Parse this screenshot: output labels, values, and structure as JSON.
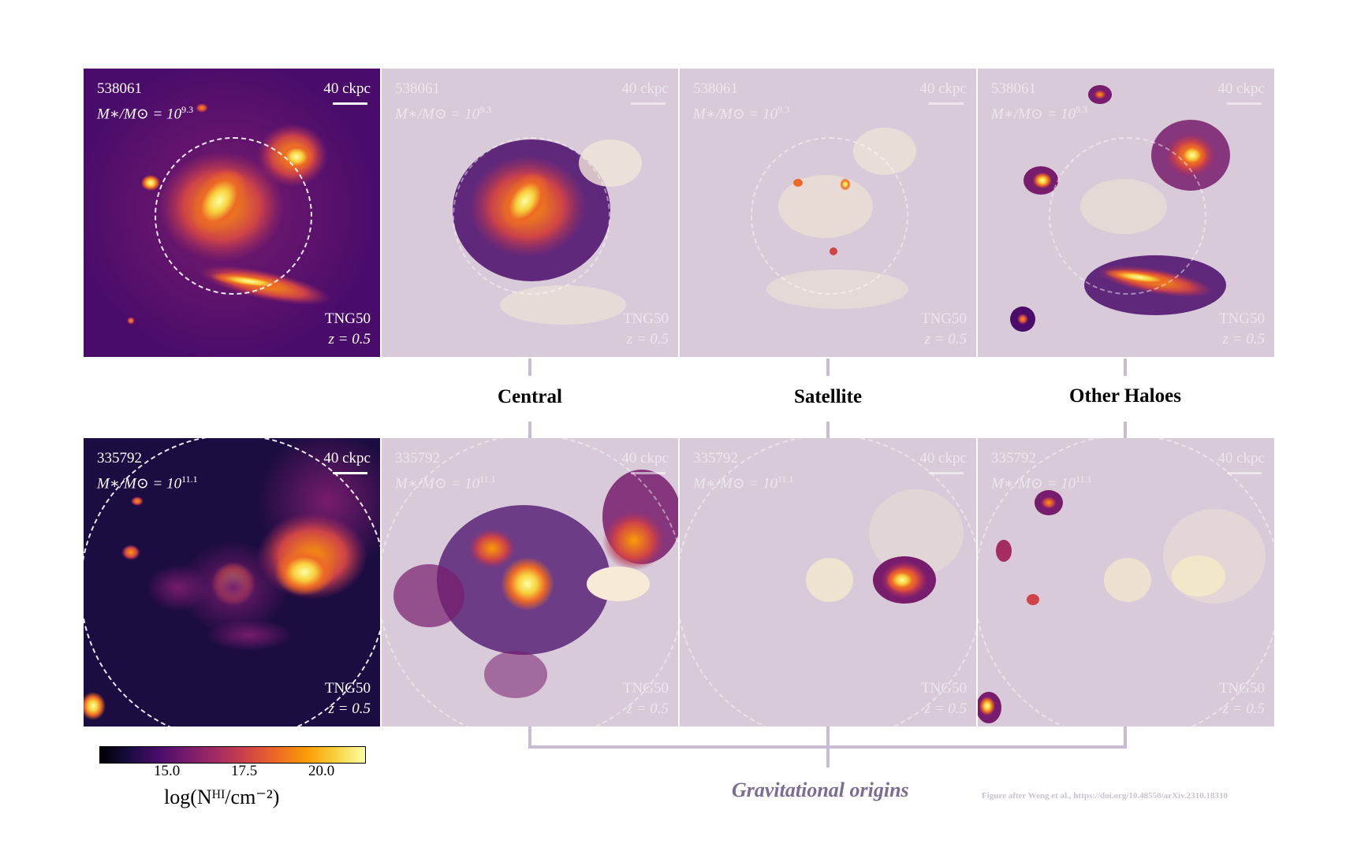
{
  "rows": [
    {
      "id": "538061",
      "mass_prefix": "M∗/M⊙ = 10",
      "mass_exp": "9.3",
      "scale": "40 ckpc",
      "sim": "TNG50",
      "redshift": "z = 0.5"
    },
    {
      "id": "335792",
      "mass_prefix": "M∗/M⊙ = 10",
      "mass_exp": "11.1",
      "scale": "40 ckpc",
      "sim": "TNG50",
      "redshift": "z = 0.5"
    }
  ],
  "categories": [
    "Central",
    "Satellite",
    "Other Haloes"
  ],
  "colorbar": {
    "colormap": "inferno",
    "ticks": [
      "15.0",
      "17.5",
      "20.0"
    ],
    "label": "log(Nᴴᴵ/cm⁻²)"
  },
  "bracket_label": "Gravitational origins",
  "credit": "Figure after Weng et al., https://doi.org/10.48550/arXiv.2310.18310",
  "colors": {
    "bracket": "#c8bcd4",
    "bracket_label": "#7c6b92",
    "panel_fade": "#dacede"
  }
}
